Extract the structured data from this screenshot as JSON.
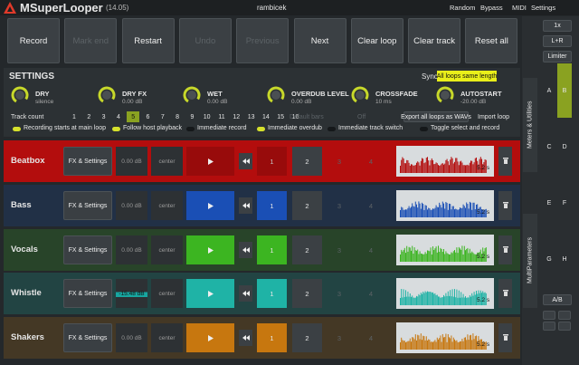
{
  "header": {
    "title": "MSuperLooper",
    "version": "(14.05)",
    "preset": "rambicek",
    "menu": [
      "Random",
      "Bypass",
      "MIDI",
      "Settings"
    ]
  },
  "toolbar": {
    "buttons": [
      {
        "label": "Record",
        "enabled": true
      },
      {
        "label": "Mark end",
        "enabled": false
      },
      {
        "label": "Restart",
        "enabled": true
      },
      {
        "label": "Undo",
        "enabled": false
      },
      {
        "label": "Previous",
        "enabled": false
      },
      {
        "label": "Next",
        "enabled": true
      },
      {
        "label": "Clear loop",
        "enabled": true
      },
      {
        "label": "Clear track",
        "enabled": true
      },
      {
        "label": "Reset all",
        "enabled": true
      }
    ]
  },
  "settings": {
    "title": "SETTINGS",
    "sync_label": "Sync",
    "sync_value": "All loops same length",
    "knobs": [
      {
        "label": "DRY",
        "value": "silence"
      },
      {
        "label": "DRY FX",
        "value": "0.00 dB"
      },
      {
        "label": "WET",
        "value": "0.00 dB"
      },
      {
        "label": "OVERDUB LEVEL",
        "value": "0.00 dB"
      },
      {
        "label": "CROSSFADE",
        "value": "10 ms"
      },
      {
        "label": "AUTOSTART",
        "value": "-20.00 dB"
      }
    ],
    "track_count_label": "Track count",
    "track_count_options": [
      "1",
      "2",
      "3",
      "4",
      "5",
      "6",
      "7",
      "8",
      "9",
      "10",
      "11",
      "12",
      "13",
      "14",
      "15",
      "16"
    ],
    "default_bars": "Default bars",
    "off": "Off",
    "export": "Export all loops as WAVs",
    "import": "Import loop",
    "checkboxes": [
      {
        "label": "Recording starts at main loop",
        "checked": true
      },
      {
        "label": "Follow host playback",
        "checked": true
      },
      {
        "label": "Immediate record",
        "checked": false
      },
      {
        "label": "Immediate overdub",
        "checked": true
      },
      {
        "label": "Immediate track switch",
        "checked": false
      },
      {
        "label": "Toggle select and record",
        "checked": false
      }
    ]
  },
  "tracks": [
    {
      "name": "Beatbox",
      "color": "#b30d0d",
      "fx": "FX & Settings",
      "gain": "0.00 dB",
      "pan": "center",
      "slots": [
        "1",
        "2",
        "3",
        "4"
      ],
      "length": "5.2 s"
    },
    {
      "name": "Bass",
      "color": "#1a4fb5",
      "fx": "FX & Settings",
      "gain": "0.00 dB",
      "pan": "center",
      "slots": [
        "1",
        "2",
        "3",
        "4"
      ],
      "length": "5.2 s"
    },
    {
      "name": "Vocals",
      "color": "#3cb521",
      "fx": "FX & Settings",
      "gain": "0.00 dB",
      "pan": "center",
      "slots": [
        "1",
        "2",
        "3",
        "4"
      ],
      "length": "5.2 s"
    },
    {
      "name": "Whistle",
      "color": "#1fb3a6",
      "fx": "FX & Settings",
      "gain": "-15.48 dB",
      "pan": "center",
      "slots": [
        "1",
        "2",
        "3",
        "4"
      ],
      "length": "5.2 s"
    },
    {
      "name": "Shakers",
      "color": "#c7770f",
      "fx": "FX & Settings",
      "gain": "0.00 dB",
      "pan": "center",
      "slots": [
        "1",
        "2",
        "3",
        "4"
      ],
      "length": "5.2 s"
    }
  ],
  "side_panel": {
    "buttons": [
      "1x",
      "L+R",
      "Limiter"
    ],
    "meters_label": "Meters & Utilities",
    "multi_label": "MultiParameters",
    "params": [
      "A",
      "B",
      "C",
      "D",
      "E",
      "F",
      "G",
      "H"
    ],
    "ab": "A/B"
  }
}
